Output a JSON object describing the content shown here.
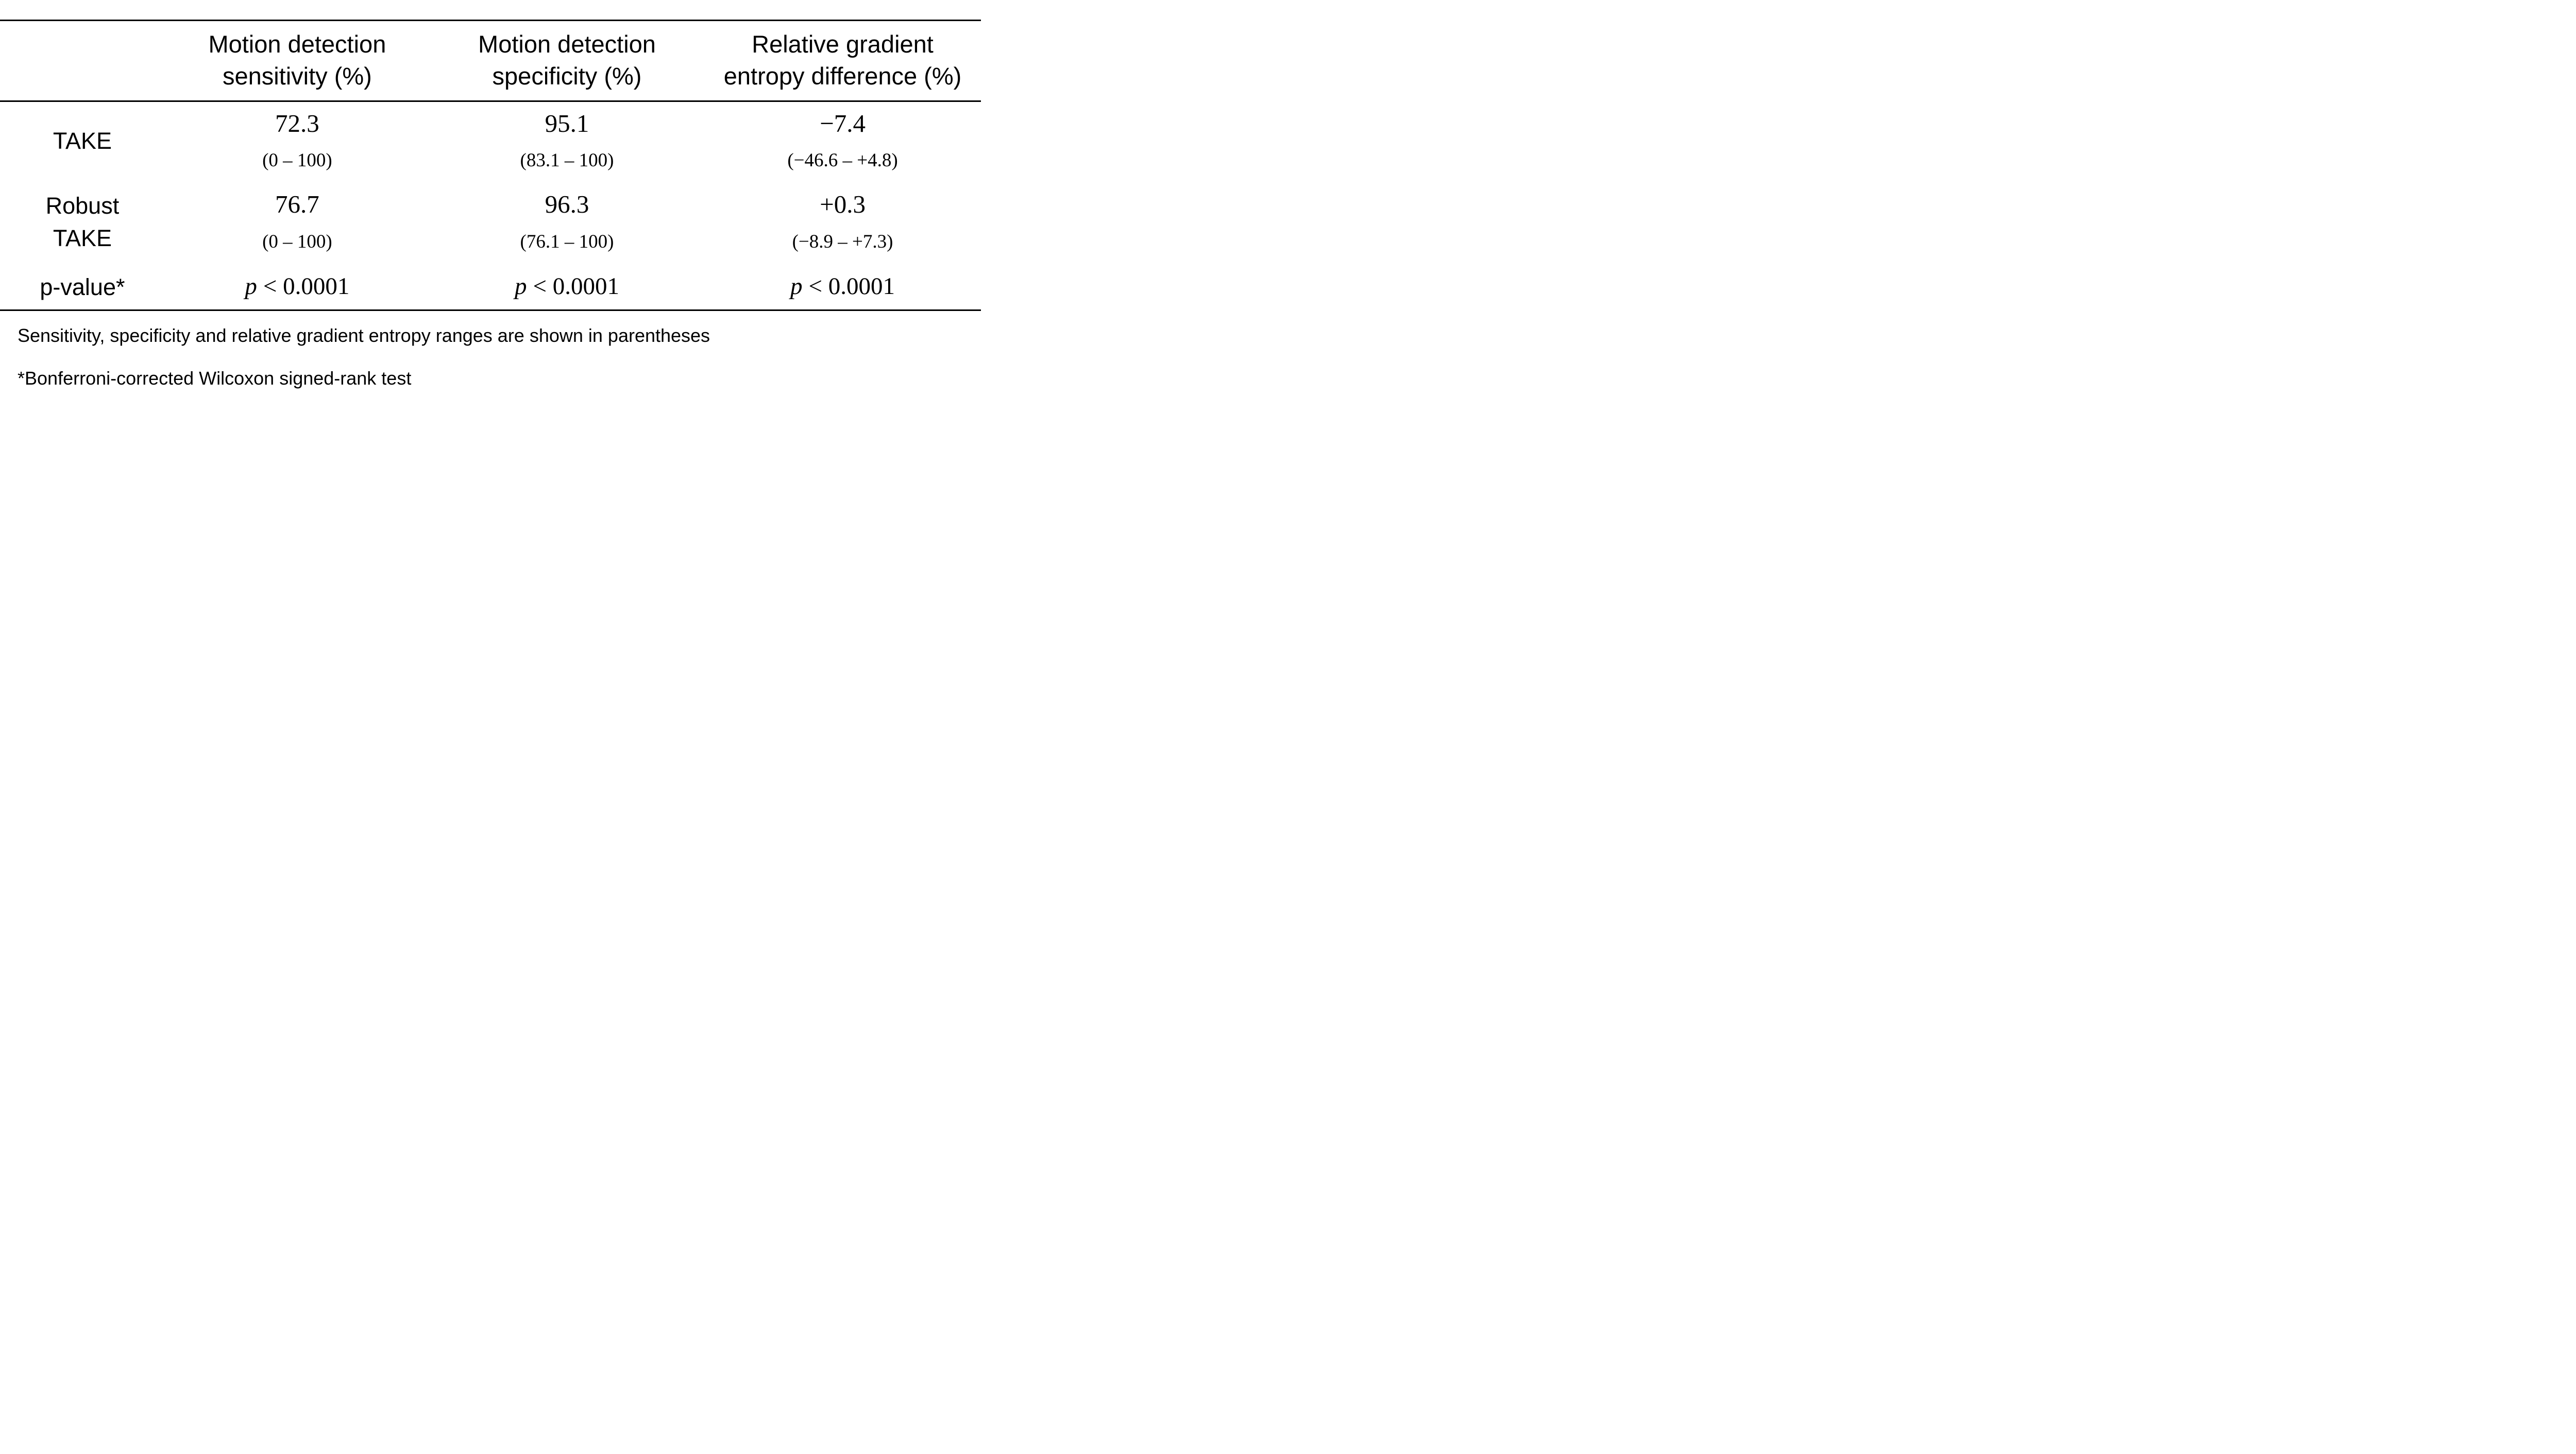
{
  "figure": {
    "headers": [
      {
        "line1": "Motion detection",
        "line2": "sensitivity (%)"
      },
      {
        "line1": "Motion detection",
        "line2": "specificity (%)"
      },
      {
        "line1": "Relative gradient",
        "line2": "entropy difference (%)"
      }
    ],
    "rows": [
      {
        "label": "TAKE",
        "cells": [
          {
            "value": "72.3",
            "range": "(0 – 100)"
          },
          {
            "value": "95.1",
            "range": "(83.1 – 100)"
          },
          {
            "value": "−7.4",
            "range": "(−46.6 – +4.8)"
          }
        ]
      },
      {
        "label1": "Robust",
        "label2": "TAKE",
        "cells": [
          {
            "value": "76.7",
            "range": "(0 – 100)"
          },
          {
            "value": "96.3",
            "range": "(76.1 – 100)"
          },
          {
            "value": "+0.3",
            "range": "(−8.9 – +7.3)"
          }
        ]
      },
      {
        "label": "p-value*",
        "cells": [
          {
            "pvar": "p",
            "pexpr": "< 0.0001"
          },
          {
            "pvar": "p",
            "pexpr": "< 0.0001"
          },
          {
            "pvar": "p",
            "pexpr": "< 0.0001"
          }
        ]
      }
    ],
    "footnotes": [
      "Sensitivity, specificity and relative gradient entropy ranges are shown in parentheses",
      "*Bonferroni-corrected Wilcoxon signed-rank test"
    ]
  }
}
